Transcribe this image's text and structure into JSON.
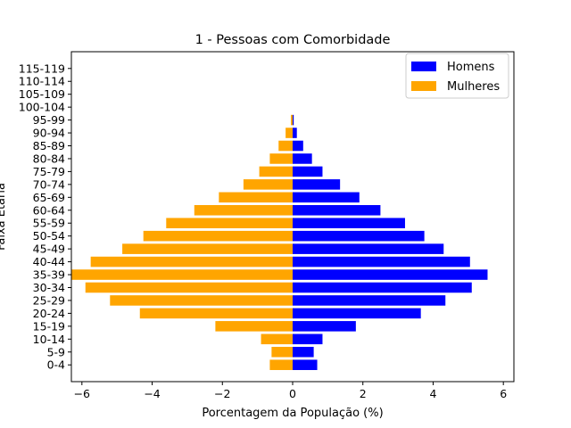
{
  "chart_data": {
    "type": "bar",
    "orientation": "horizontal",
    "title": "1 - Pessoas com Comorbidade",
    "xlabel": "Porcentagem da População (%)",
    "ylabel": "Faixa Etária",
    "xlim": [
      -6.3,
      6.3
    ],
    "xticks": [
      -6,
      -4,
      -2,
      0,
      2,
      4,
      6
    ],
    "xtick_labels": [
      "−6",
      "−4",
      "−2",
      "0",
      "2",
      "4",
      "6"
    ],
    "legend_position": "top-right",
    "categories": [
      "0-4",
      "5-9",
      "10-14",
      "15-19",
      "20-24",
      "25-29",
      "30-34",
      "35-39",
      "40-44",
      "45-49",
      "50-54",
      "55-59",
      "60-64",
      "65-69",
      "70-74",
      "75-79",
      "80-84",
      "85-89",
      "90-94",
      "95-99",
      "100-104",
      "105-109",
      "110-114",
      "115-119"
    ],
    "series": [
      {
        "name": "Homens",
        "color": "#0000ff",
        "values": [
          0.7,
          0.6,
          0.85,
          1.8,
          3.65,
          4.35,
          5.1,
          5.55,
          5.05,
          4.3,
          3.75,
          3.2,
          2.5,
          1.9,
          1.35,
          0.85,
          0.55,
          0.3,
          0.12,
          0.03,
          0,
          0,
          0,
          0
        ]
      },
      {
        "name": "Mulheres",
        "color": "#ffa500",
        "values": [
          -0.65,
          -0.6,
          -0.9,
          -2.2,
          -4.35,
          -5.2,
          -5.9,
          -6.3,
          -5.75,
          -4.85,
          -4.25,
          -3.6,
          -2.8,
          -2.1,
          -1.4,
          -0.95,
          -0.65,
          -0.4,
          -0.2,
          -0.05,
          0,
          0,
          0,
          0
        ]
      }
    ]
  }
}
